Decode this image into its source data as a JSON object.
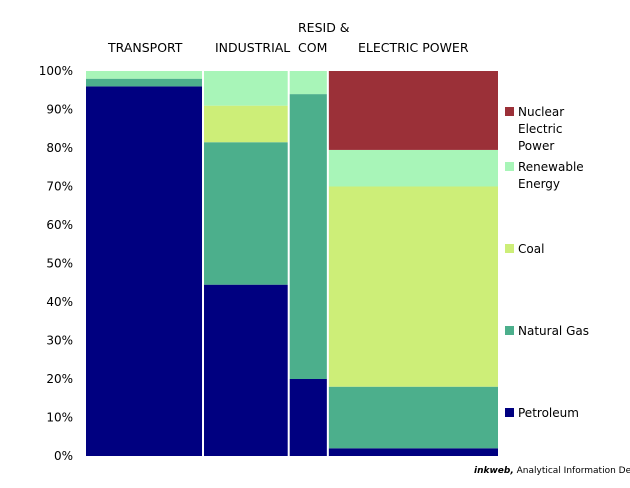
{
  "chart_data": {
    "type": "mosaic",
    "title": "",
    "categories": [
      "TRANSPORT",
      "INDUSTRIAL",
      "RESID & COM",
      "ELECTRIC POWER"
    ],
    "category_label_lines": [
      [
        "TRANSPORT"
      ],
      [
        "INDUSTRIAL"
      ],
      [
        "RESID &",
        "COM"
      ],
      [
        "ELECTRIC POWER"
      ]
    ],
    "category_share": [
      0.284,
      0.208,
      0.095,
      0.413
    ],
    "series": [
      {
        "name": "Petroleum",
        "color": "#000080",
        "values": [
          96.0,
          44.5,
          20.0,
          2.0
        ]
      },
      {
        "name": "Natural Gas",
        "color": "#4caf8c",
        "values": [
          2.0,
          37.0,
          74.0,
          16.0
        ]
      },
      {
        "name": "Coal",
        "color": "#cdee78",
        "values": [
          0.0,
          9.5,
          0.0,
          52.0
        ]
      },
      {
        "name": "Renewable Energy",
        "color": "#a8f5b8",
        "values": [
          2.0,
          9.0,
          6.0,
          9.5
        ]
      },
      {
        "name": "Nuclear Electric Power",
        "color": "#9b3038",
        "values": [
          0.0,
          0.0,
          0.0,
          20.5
        ]
      }
    ],
    "legend_order": [
      "Nuclear Electric Power",
      "Renewable Energy",
      "Coal",
      "Natural Gas",
      "Petroleum"
    ],
    "legend_lines": {
      "Nuclear Electric Power": [
        "Nuclear",
        "Electric",
        "Power"
      ],
      "Renewable Energy": [
        "Renewable",
        "Energy"
      ],
      "Coal": [
        "Coal"
      ],
      "Natural Gas": [
        "Natural Gas"
      ],
      "Petroleum": [
        "Petroleum"
      ]
    },
    "y_ticks": [
      "0%",
      "10%",
      "20%",
      "30%",
      "40%",
      "50%",
      "60%",
      "70%",
      "80%",
      "90%",
      "100%"
    ],
    "ylim": [
      0,
      100
    ],
    "legend_position": "right",
    "grid": false
  },
  "credit": {
    "brand": "inkweb,",
    "text": " Analytical Information Design"
  }
}
